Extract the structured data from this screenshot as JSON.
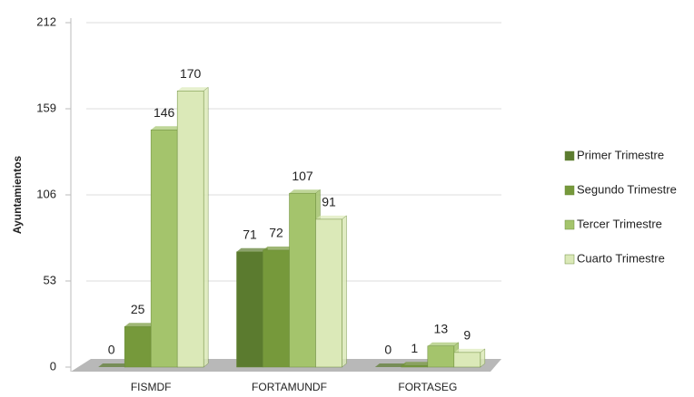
{
  "chart_data": {
    "type": "bar",
    "y_label": "Ayuntamientos",
    "categories": [
      "FISMDF",
      "FORTAMUNDF",
      "FORTASEG"
    ],
    "series": [
      {
        "name": "Primer Trimestre",
        "color": "#5b7b2f",
        "values": [
          0,
          71,
          0
        ]
      },
      {
        "name": "Segundo Trimestre",
        "color": "#76993b",
        "values": [
          25,
          72,
          1
        ]
      },
      {
        "name": "Tercer Trimestre",
        "color": "#a4c46c",
        "values": [
          146,
          107,
          13
        ]
      },
      {
        "name": "Cuarto Trimestre",
        "color": "#dbe9b8",
        "values": [
          170,
          91,
          9
        ]
      }
    ],
    "ylim": [
      0,
      212
    ],
    "yticks": [
      0,
      53,
      106,
      159,
      212
    ],
    "grid": true,
    "legend": "right"
  }
}
